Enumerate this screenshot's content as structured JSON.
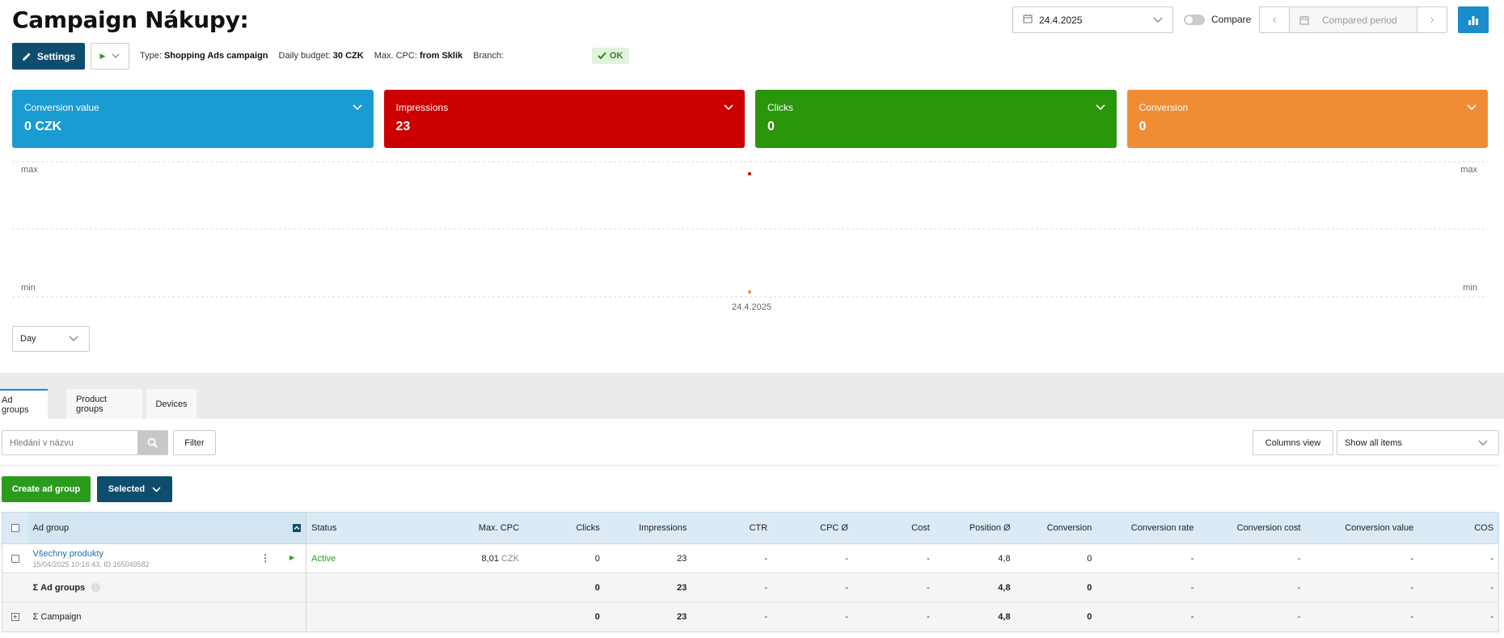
{
  "header": {
    "title": "Campaign Nákupy:",
    "date": "24.4.2025",
    "compare_label": "Compare",
    "compared_period_placeholder": "Compared period"
  },
  "toolbar": {
    "settings_label": "Settings",
    "type_label": "Type:",
    "type_value": "Shopping Ads campaign",
    "budget_label": "Daily budget:",
    "budget_value": "30 CZK",
    "cpc_label": "Max. CPC:",
    "cpc_value": "from Sklik",
    "branch_label": "Branch:",
    "ok_badge": "OK"
  },
  "cards": [
    {
      "label": "Conversion value",
      "value": "0 CZK",
      "color": "#1a9bd1"
    },
    {
      "label": "Impressions",
      "value": "23",
      "color": "#cc0000"
    },
    {
      "label": "Clicks",
      "value": "0",
      "color": "#2a960c"
    },
    {
      "label": "Conversion",
      "value": "0",
      "color": "#f08c34"
    }
  ],
  "chart": {
    "max_left": "max",
    "max_right": "max",
    "min_left": "min",
    "min_right": "min",
    "x_label": "24.4.2025",
    "granularity": "Day"
  },
  "tabs": [
    {
      "label": "Ad groups",
      "active": true
    },
    {
      "label": "Product groups",
      "active": false
    },
    {
      "label": "Devices",
      "active": false
    }
  ],
  "filters": {
    "search_placeholder": "Hledání v názvu",
    "filter_label": "Filter",
    "columns_view_label": "Columns view",
    "show_select": "Show all items"
  },
  "actions": {
    "create_label": "Create ad group",
    "selected_label": "Selected"
  },
  "table": {
    "headers": {
      "ad_group": "Ad group",
      "status": "Status",
      "max_cpc": "Max. CPC",
      "clicks": "Clicks",
      "impressions": "Impressions",
      "ctr": "CTR",
      "cpc": "CPC Ø",
      "cost": "Cost",
      "position": "Position Ø",
      "conversion": "Conversion",
      "conv_rate": "Conversion rate",
      "conv_cost": "Conversion cost",
      "conv_value": "Conversion value",
      "cos": "COS"
    },
    "row": {
      "name": "Všechny produkty",
      "sub": "15/04/2025 10:16:43, ID 155049582",
      "status": "Active",
      "max_cpc": "8,01",
      "currency": "CZK",
      "clicks": "0",
      "impressions": "23",
      "ctr": "-",
      "cpc": "-",
      "cost": "-",
      "position": "4,8",
      "conversion": "0",
      "conv_rate": "-",
      "conv_cost": "-",
      "conv_value": "-",
      "cos": "-"
    },
    "sum_groups": {
      "name": "Σ Ad groups",
      "clicks": "0",
      "impressions": "23",
      "ctr": "-",
      "cpc": "-",
      "cost": "-",
      "position": "4,8",
      "conversion": "0",
      "conv_rate": "-",
      "conv_cost": "-",
      "conv_value": "-",
      "cos": "-"
    },
    "sum_campaign": {
      "name": "Σ Campaign",
      "clicks": "0",
      "impressions": "23",
      "ctr": "-",
      "cpc": "-",
      "cost": "-",
      "position": "4,8",
      "conversion": "0",
      "conv_rate": "-",
      "conv_cost": "-",
      "conv_value": "-",
      "cos": "-"
    }
  }
}
